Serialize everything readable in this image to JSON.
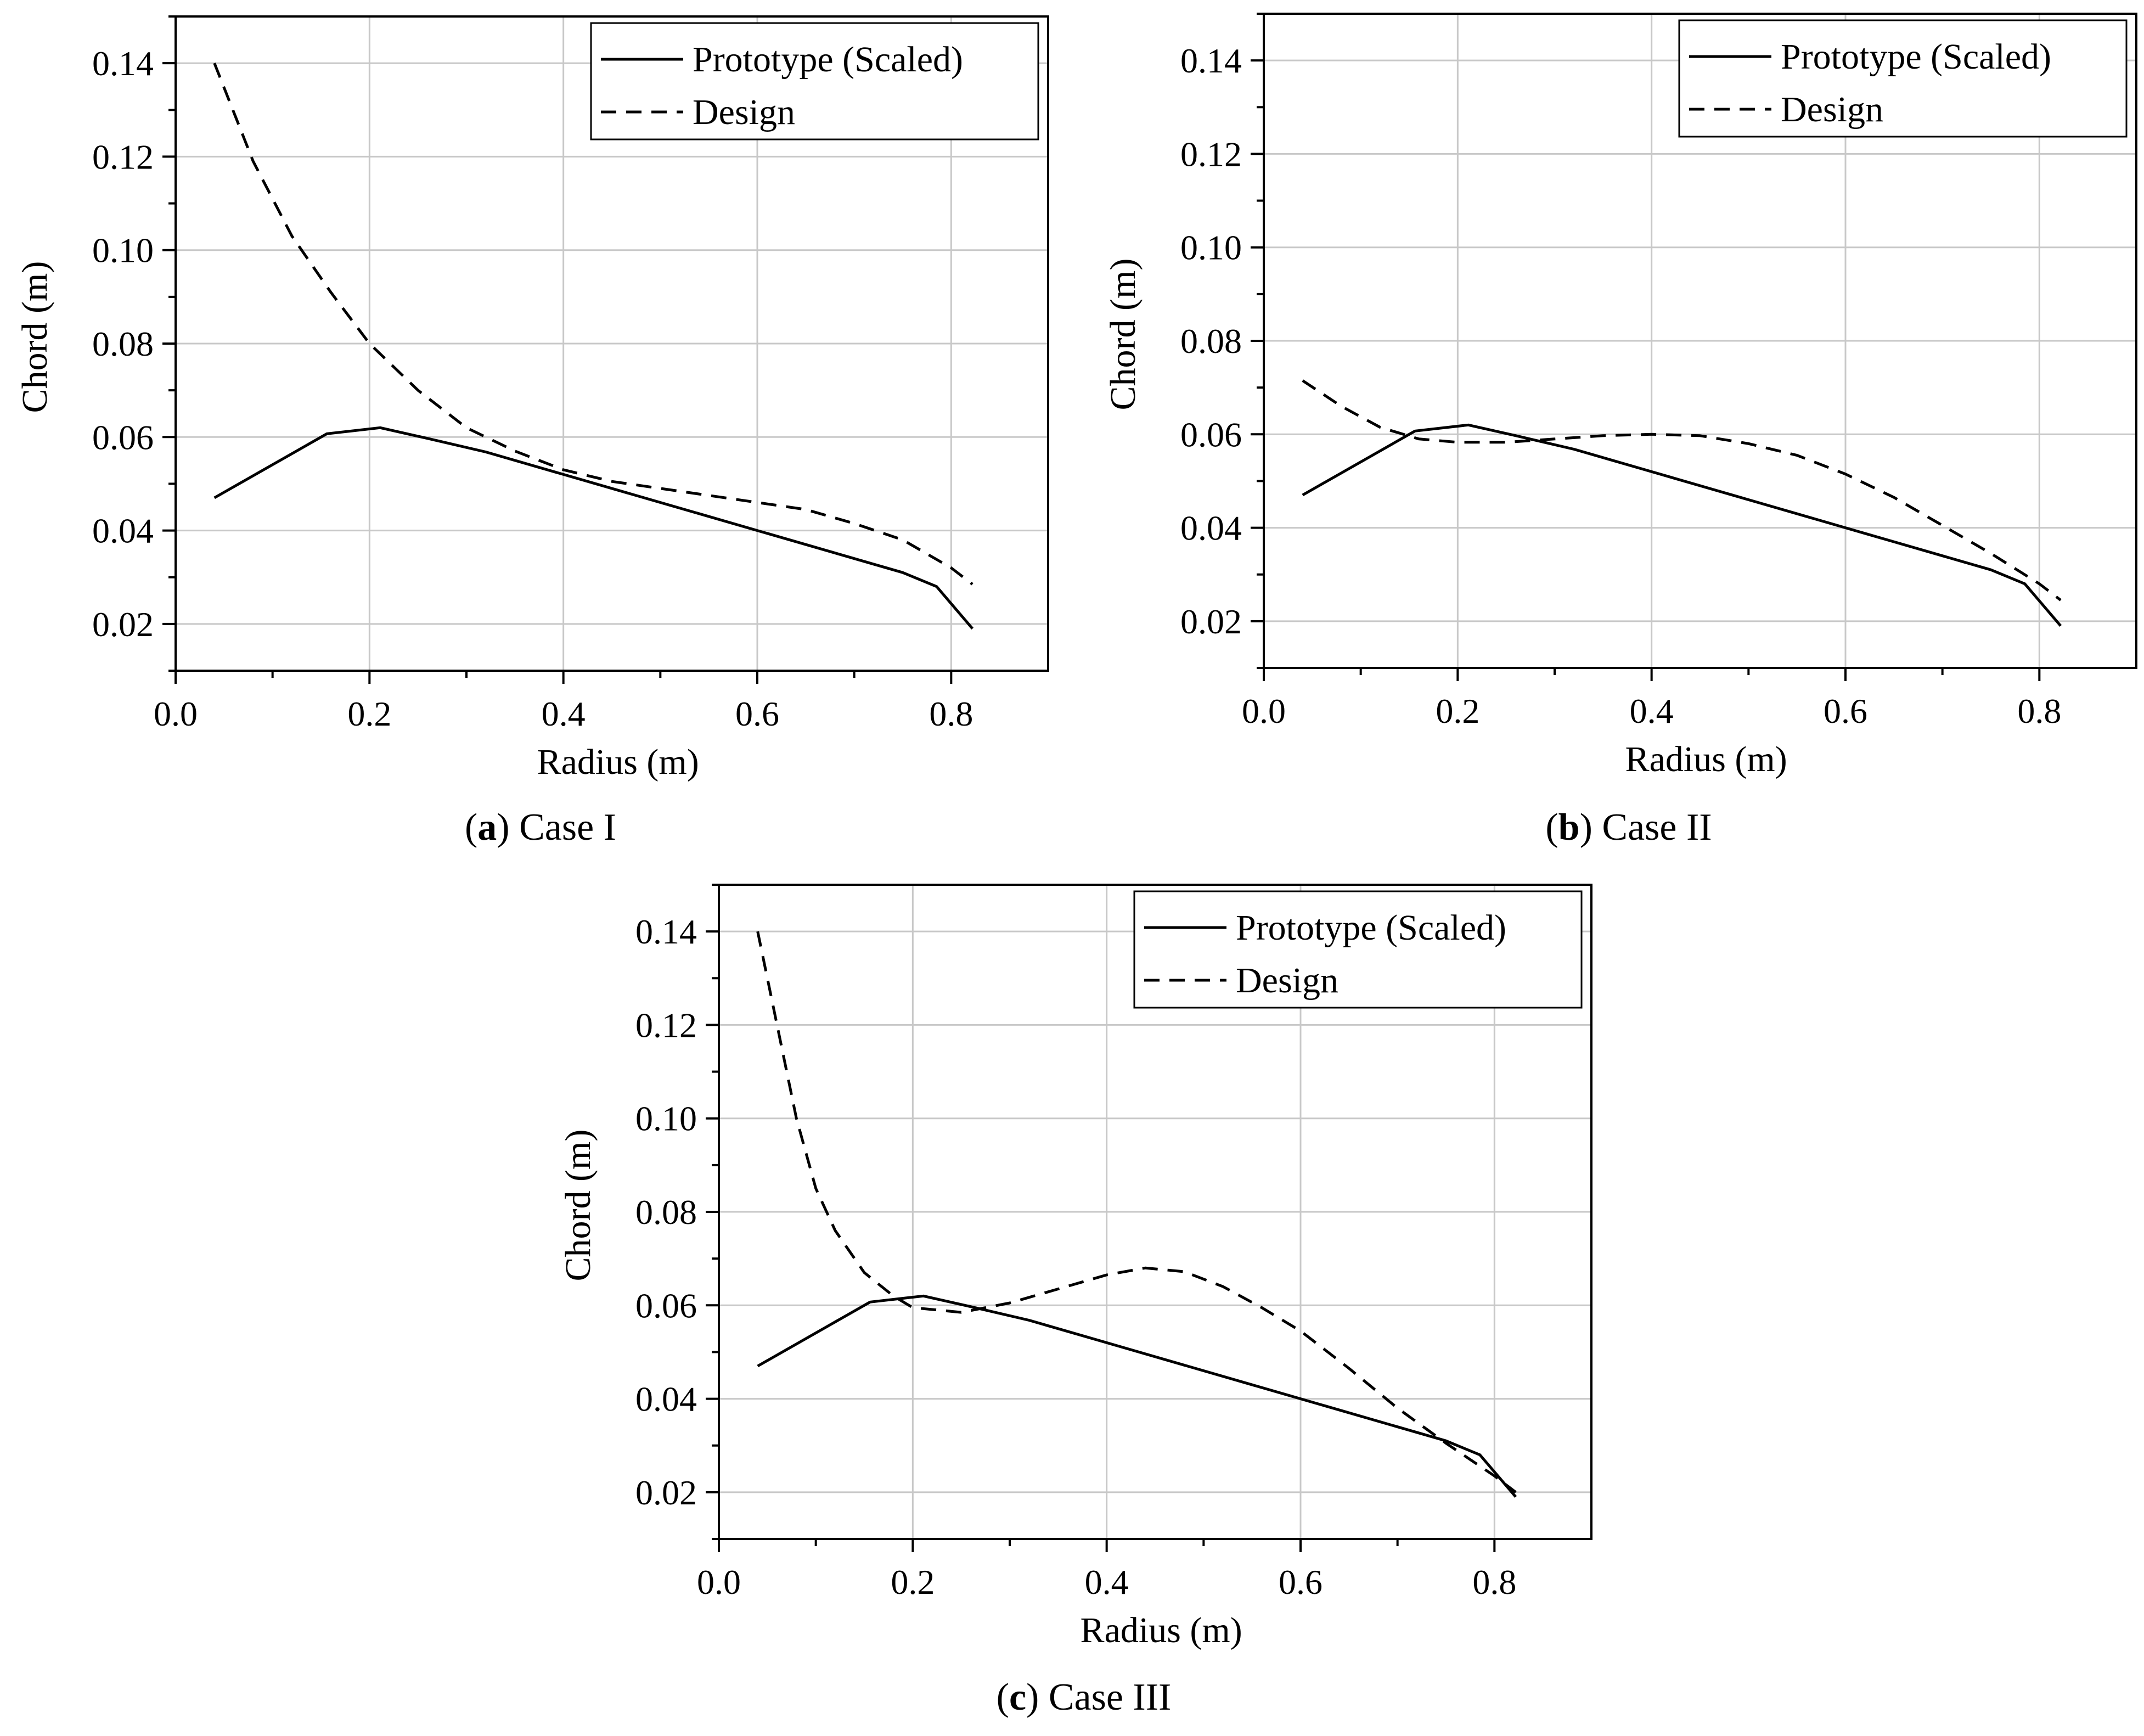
{
  "chart_data": [
    {
      "type": "line",
      "caption": {
        "open": "(",
        "letter": "a",
        "close": ") ",
        "text": "Case I"
      },
      "xlabel": "Radius (m)",
      "ylabel": "Chord (m)",
      "xlim": [
        0.0,
        0.9
      ],
      "ylim": [
        0.01,
        0.15
      ],
      "xticks": [
        0.0,
        0.2,
        0.4,
        0.6,
        0.8
      ],
      "xtick_labels": [
        "0.0",
        "0.2",
        "0.4",
        "0.6",
        "0.8"
      ],
      "yticks": [
        0.02,
        0.04,
        0.06,
        0.08,
        0.1,
        0.12,
        0.14
      ],
      "ytick_labels": [
        "0.02",
        "0.04",
        "0.06",
        "0.08",
        "0.10",
        "0.12",
        "0.14"
      ],
      "grid": true,
      "legend_position": "top-right",
      "series": [
        {
          "name": "Prototype (Scaled)",
          "style": "solid",
          "x": [
            0.04,
            0.156,
            0.211,
            0.26,
            0.32,
            0.4,
            0.5,
            0.6,
            0.7,
            0.75,
            0.785,
            0.822
          ],
          "y": [
            0.047,
            0.0607,
            0.062,
            0.0597,
            0.0568,
            0.052,
            0.046,
            0.04,
            0.034,
            0.031,
            0.028,
            0.019
          ]
        },
        {
          "name": "Design",
          "style": "dashed",
          "x": [
            0.04,
            0.08,
            0.12,
            0.16,
            0.2,
            0.25,
            0.3,
            0.35,
            0.4,
            0.45,
            0.5,
            0.55,
            0.6,
            0.65,
            0.7,
            0.75,
            0.8,
            0.822
          ],
          "y": [
            0.14,
            0.119,
            0.103,
            0.091,
            0.08,
            0.07,
            0.062,
            0.057,
            0.053,
            0.0505,
            0.049,
            0.0475,
            0.046,
            0.0445,
            0.0415,
            0.038,
            0.032,
            0.0285
          ]
        }
      ]
    },
    {
      "type": "line",
      "caption": {
        "open": "(",
        "letter": "b",
        "close": ") ",
        "text": "Case II"
      },
      "xlabel": "Radius (m)",
      "ylabel": "Chord (m)",
      "xlim": [
        0.0,
        0.9
      ],
      "ylim": [
        0.01,
        0.15
      ],
      "xticks": [
        0.0,
        0.2,
        0.4,
        0.6,
        0.8
      ],
      "xtick_labels": [
        "0.0",
        "0.2",
        "0.4",
        "0.6",
        "0.8"
      ],
      "yticks": [
        0.02,
        0.04,
        0.06,
        0.08,
        0.1,
        0.12,
        0.14
      ],
      "ytick_labels": [
        "0.02",
        "0.04",
        "0.06",
        "0.08",
        "0.10",
        "0.12",
        "0.14"
      ],
      "grid": true,
      "legend_position": "top-right",
      "series": [
        {
          "name": "Prototype (Scaled)",
          "style": "solid",
          "x": [
            0.04,
            0.156,
            0.211,
            0.26,
            0.32,
            0.4,
            0.5,
            0.6,
            0.7,
            0.75,
            0.785,
            0.822
          ],
          "y": [
            0.047,
            0.0607,
            0.062,
            0.0597,
            0.0568,
            0.052,
            0.046,
            0.04,
            0.034,
            0.031,
            0.028,
            0.019
          ]
        },
        {
          "name": "Design",
          "style": "dashed",
          "x": [
            0.04,
            0.08,
            0.12,
            0.16,
            0.2,
            0.25,
            0.3,
            0.35,
            0.4,
            0.45,
            0.5,
            0.55,
            0.6,
            0.65,
            0.7,
            0.75,
            0.8,
            0.822
          ],
          "y": [
            0.0715,
            0.066,
            0.0615,
            0.059,
            0.0583,
            0.0583,
            0.059,
            0.0597,
            0.06,
            0.0597,
            0.058,
            0.0555,
            0.0515,
            0.0465,
            0.0405,
            0.0345,
            0.028,
            0.0245
          ]
        }
      ]
    },
    {
      "type": "line",
      "caption": {
        "open": "(",
        "letter": "c",
        "close": ") ",
        "text": "Case III"
      },
      "xlabel": "Radius (m)",
      "ylabel": "Chord (m)",
      "xlim": [
        0.0,
        0.9
      ],
      "ylim": [
        0.01,
        0.15
      ],
      "xticks": [
        0.0,
        0.2,
        0.4,
        0.6,
        0.8
      ],
      "xtick_labels": [
        "0.0",
        "0.2",
        "0.4",
        "0.6",
        "0.8"
      ],
      "yticks": [
        0.02,
        0.04,
        0.06,
        0.08,
        0.1,
        0.12,
        0.14
      ],
      "ytick_labels": [
        "0.02",
        "0.04",
        "0.06",
        "0.08",
        "0.10",
        "0.12",
        "0.14"
      ],
      "grid": true,
      "legend_position": "top-right",
      "series": [
        {
          "name": "Prototype (Scaled)",
          "style": "solid",
          "x": [
            0.04,
            0.156,
            0.211,
            0.26,
            0.32,
            0.4,
            0.5,
            0.6,
            0.7,
            0.75,
            0.785,
            0.822
          ],
          "y": [
            0.047,
            0.0607,
            0.062,
            0.0597,
            0.0568,
            0.052,
            0.046,
            0.04,
            0.034,
            0.031,
            0.028,
            0.019
          ]
        },
        {
          "name": "Design",
          "style": "dashed",
          "x": [
            0.04,
            0.06,
            0.08,
            0.1,
            0.12,
            0.15,
            0.18,
            0.2,
            0.25,
            0.3,
            0.35,
            0.4,
            0.44,
            0.48,
            0.52,
            0.56,
            0.6,
            0.65,
            0.7,
            0.75,
            0.8,
            0.822
          ],
          "y": [
            0.14,
            0.12,
            0.1,
            0.085,
            0.076,
            0.067,
            0.062,
            0.0595,
            0.0585,
            0.0605,
            0.0635,
            0.0665,
            0.068,
            0.0672,
            0.064,
            0.0595,
            0.0545,
            0.0465,
            0.038,
            0.0305,
            0.0235,
            0.02
          ]
        }
      ]
    }
  ]
}
